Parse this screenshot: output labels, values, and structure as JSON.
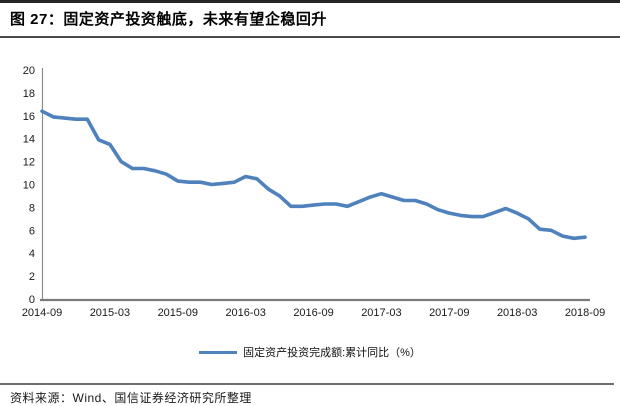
{
  "header": {
    "title": "图 27：固定资产投资触底，未来有望企稳回升"
  },
  "legend": {
    "label": "固定资产投资完成额:累计同比（%）"
  },
  "source": {
    "text": "资料来源：Wind、国信证券经济研究所整理"
  },
  "colors": {
    "line": "#4F81BD",
    "axis": "#8c8c8c",
    "x_axis": "#7a7a7a",
    "tick_text": "#1a1a1a"
  },
  "chart_data": {
    "type": "line",
    "title": "图 27：固定资产投资触底，未来有望企稳回升",
    "xlabel": "",
    "ylabel": "",
    "ylim": [
      0,
      20
    ],
    "y_ticks": [
      0,
      2,
      4,
      6,
      8,
      10,
      12,
      14,
      16,
      18,
      20
    ],
    "grid": false,
    "legend_position": "bottom",
    "x_tick_labels": [
      "2014-09",
      "2015-03",
      "2015-09",
      "2016-03",
      "2016-09",
      "2017-03",
      "2017-09",
      "2018-03",
      "2018-09"
    ],
    "categories": [
      "2014-09",
      "2014-10",
      "2014-11",
      "2014-12",
      "2015-01",
      "2015-02",
      "2015-03",
      "2015-04",
      "2015-05",
      "2015-06",
      "2015-07",
      "2015-08",
      "2015-09",
      "2015-10",
      "2015-11",
      "2015-12",
      "2016-01",
      "2016-02",
      "2016-03",
      "2016-04",
      "2016-05",
      "2016-06",
      "2016-07",
      "2016-08",
      "2016-09",
      "2016-10",
      "2016-11",
      "2016-12",
      "2017-01",
      "2017-02",
      "2017-03",
      "2017-04",
      "2017-05",
      "2017-06",
      "2017-07",
      "2017-08",
      "2017-09",
      "2017-10",
      "2017-11",
      "2017-12",
      "2018-01",
      "2018-02",
      "2018-03",
      "2018-04",
      "2018-05",
      "2018-06",
      "2018-07",
      "2018-08",
      "2018-09"
    ],
    "series": [
      {
        "name": "固定资产投资完成额:累计同比（%）",
        "values": [
          16.4,
          15.9,
          15.8,
          15.7,
          15.7,
          13.9,
          13.5,
          12.0,
          11.4,
          11.4,
          11.2,
          10.9,
          10.3,
          10.2,
          10.2,
          10.0,
          10.1,
          10.2,
          10.7,
          10.5,
          9.6,
          9.0,
          8.1,
          8.1,
          8.2,
          8.3,
          8.3,
          8.1,
          8.5,
          8.9,
          9.2,
          8.9,
          8.6,
          8.6,
          8.3,
          7.8,
          7.5,
          7.3,
          7.2,
          7.2,
          7.55,
          7.9,
          7.5,
          7.0,
          6.1,
          6.0,
          5.5,
          5.3,
          5.4
        ]
      }
    ]
  }
}
